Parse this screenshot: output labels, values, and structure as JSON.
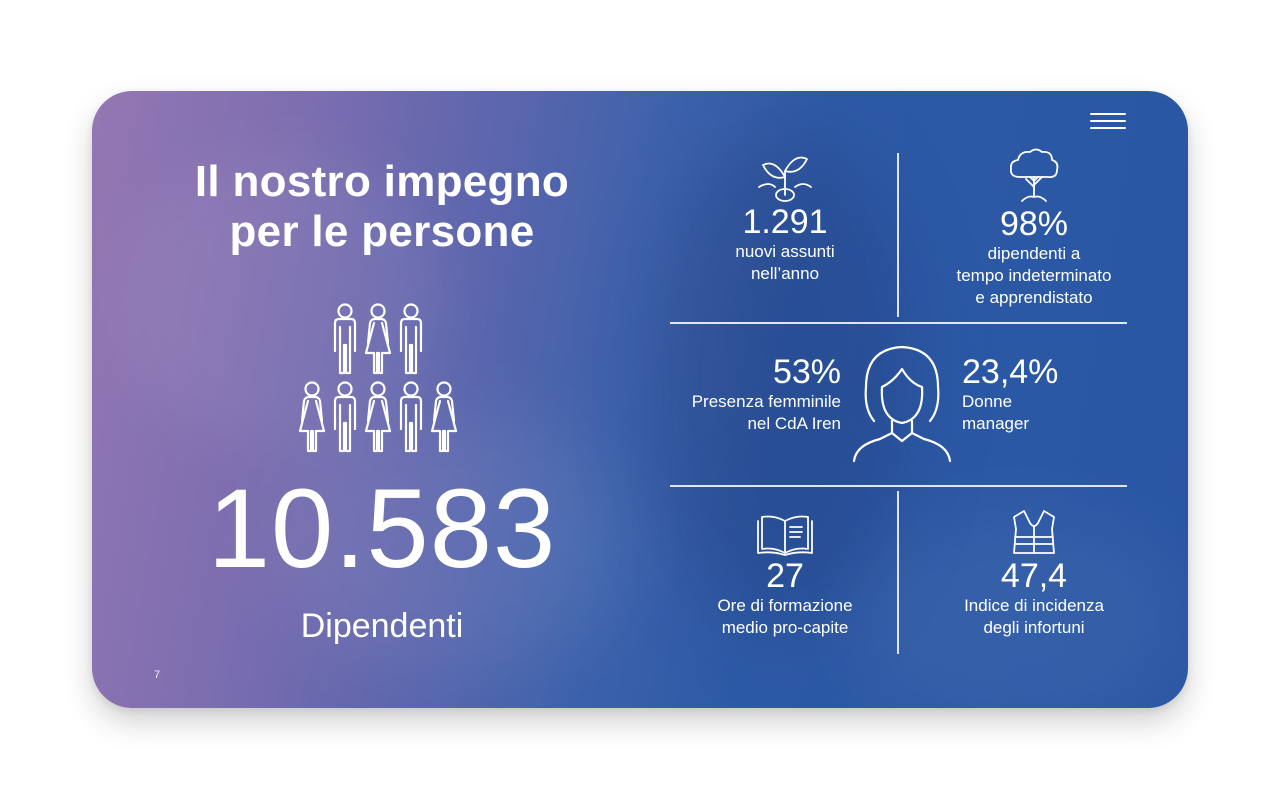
{
  "slide": {
    "title_line1": "Il nostro impegno",
    "title_line2": "per le persone",
    "employees_value": "10.583",
    "employees_label": "Dipendenti",
    "page_number": "7"
  },
  "stats": {
    "new_hires": {
      "value": "1.291",
      "label_line1": "nuovi assunti",
      "label_line2": "nell’anno",
      "icon": "sprout-icon"
    },
    "permanent": {
      "value": "98%",
      "label_line1": "dipendenti a",
      "label_line2": "tempo indeterminato",
      "label_line3": "e apprendistato",
      "icon": "tree-icon"
    },
    "female_board": {
      "value": "53%",
      "label_line1": "Presenza femminile",
      "label_line2": "nel CdA Iren"
    },
    "women_managers": {
      "value": "23,4%",
      "label_line1": "Donne",
      "label_line2": "manager"
    },
    "woman_icon": "woman-portrait-icon",
    "training": {
      "value": "27",
      "label_line1": "Ore di formazione",
      "label_line2": "medio pro-capite",
      "icon": "open-book-icon"
    },
    "injuries": {
      "value": "47,4",
      "label_line1": "Indice di incidenza",
      "label_line2": "degli infortuni",
      "icon": "safety-vest-icon"
    }
  },
  "colors": {
    "gradient_start": "#9477b3",
    "gradient_end": "#2956a4",
    "text": "#ffffff"
  }
}
